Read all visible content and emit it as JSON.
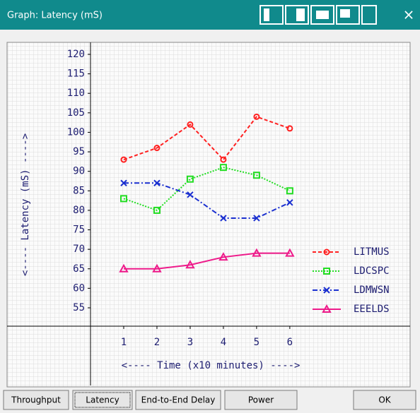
{
  "window": {
    "title": "Graph: Latency (mS)",
    "close": "×"
  },
  "buttons": [
    "Throughput",
    "Latency",
    "End-to-End Delay",
    "Power",
    "OK"
  ],
  "chart_data": {
    "type": "line",
    "ylabel": "<---- Latency (mS) ---->",
    "xlabel": "<---- Time (x10 minutes) ---->",
    "x": [
      1,
      2,
      3,
      4,
      5,
      6
    ],
    "xlim": [
      0,
      9.6
    ],
    "xticks": [
      1,
      2,
      3,
      4,
      5,
      6
    ],
    "ylim": [
      50,
      123
    ],
    "yticks": [
      55,
      60,
      65,
      70,
      75,
      80,
      85,
      90,
      95,
      100,
      105,
      110,
      115,
      120
    ],
    "legend": "lower right",
    "series": [
      {
        "name": "LITMUS",
        "color": "#ff2020",
        "line_style": "dashed",
        "marker": "circle",
        "values": [
          93,
          96,
          102,
          93,
          104,
          101
        ]
      },
      {
        "name": "LDCSPC",
        "color": "#22dd22",
        "line_style": "dotted",
        "marker": "square",
        "values": [
          83,
          80,
          88,
          91,
          89,
          85
        ]
      },
      {
        "name": "LDMWSN",
        "color": "#1a2fd0",
        "line_style": "dashdot",
        "marker": "x",
        "values": [
          87,
          87,
          84,
          78,
          78,
          82
        ]
      },
      {
        "name": "EEELDS",
        "color": "#ee1a8a",
        "line_style": "solid",
        "marker": "triangle",
        "values": [
          65,
          65,
          66,
          68,
          69,
          69
        ]
      }
    ]
  }
}
